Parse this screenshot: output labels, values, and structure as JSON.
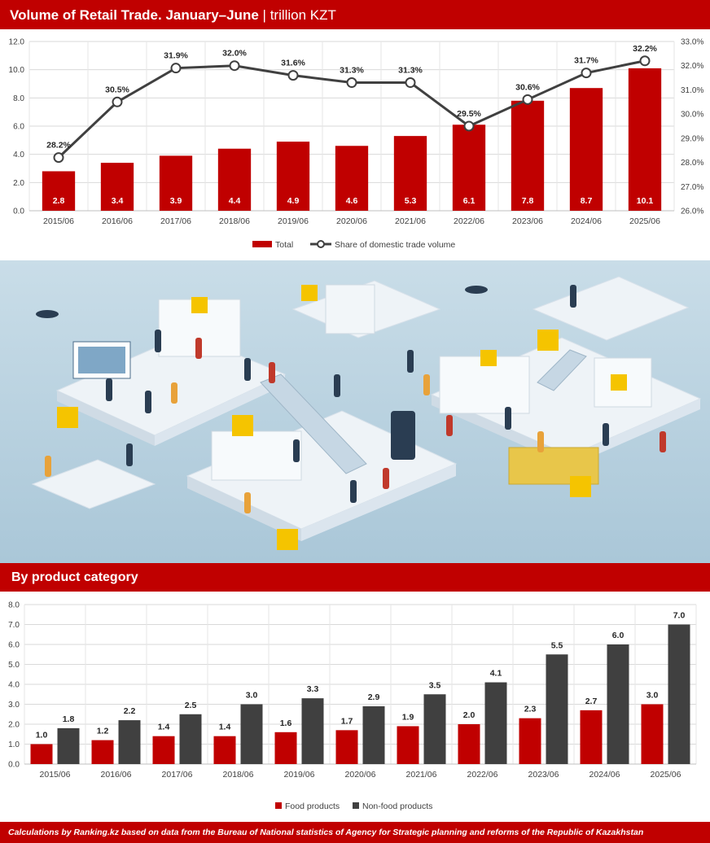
{
  "header": {
    "title": "Volume of Retail Trade. January–June",
    "separator": "|",
    "unit": "trillion KZT"
  },
  "section2": {
    "title": "By product category"
  },
  "footer": {
    "source": "Calculations by Ranking.kz based on data from the Bureau of National statistics of Agency for Strategic planning and reforms of the Republic of Kazakhstan"
  },
  "colors": {
    "accent": "#c00000",
    "dark": "#404040",
    "line": "#404040"
  },
  "chart_data": [
    {
      "type": "bar+line",
      "categories": [
        "2015/06",
        "2016/06",
        "2017/06",
        "2018/06",
        "2019/06",
        "2020/06",
        "2021/06",
        "2022/06",
        "2023/06",
        "2024/06",
        "2025/06"
      ],
      "series": [
        {
          "name": "Total",
          "type": "bar",
          "axis": "left",
          "values": [
            2.8,
            3.4,
            3.9,
            4.4,
            4.9,
            4.6,
            5.3,
            6.1,
            7.8,
            8.7,
            10.1
          ],
          "labels": [
            "2.8",
            "3.4",
            "3.9",
            "4.4",
            "4.9",
            "4.6",
            "5.3",
            "6.1",
            "7.8",
            "8.7",
            "10.1"
          ]
        },
        {
          "name": "Share of domestic trade volume",
          "type": "line",
          "axis": "right",
          "values": [
            28.2,
            30.5,
            31.9,
            32.0,
            31.6,
            31.3,
            31.3,
            29.5,
            30.6,
            31.7,
            32.2
          ],
          "labels": [
            "28.2%",
            "30.5%",
            "31.9%",
            "32.0%",
            "31.6%",
            "31.3%",
            "31.3%",
            "29.5%",
            "30.6%",
            "31.7%",
            "32.2%"
          ]
        }
      ],
      "ylim_left": [
        0,
        12
      ],
      "yticks_left": [
        "0.0",
        "2.0",
        "4.0",
        "6.0",
        "8.0",
        "10.0",
        "12.0"
      ],
      "ylim_right": [
        26,
        33
      ],
      "yticks_right": [
        "26.0%",
        "27.0%",
        "28.0%",
        "29.0%",
        "30.0%",
        "31.0%",
        "32.0%",
        "33.0%"
      ],
      "grid": true,
      "legend": "bottom"
    },
    {
      "type": "bar",
      "categories": [
        "2015/06",
        "2016/06",
        "2017/06",
        "2018/06",
        "2019/06",
        "2020/06",
        "2021/06",
        "2022/06",
        "2023/06",
        "2024/06",
        "2025/06"
      ],
      "series": [
        {
          "name": "Food products",
          "values": [
            1.0,
            1.2,
            1.4,
            1.4,
            1.6,
            1.7,
            1.9,
            2.0,
            2.3,
            2.7,
            3.0
          ],
          "labels": [
            "1.0",
            "1.2",
            "1.4",
            "1.4",
            "1.6",
            "1.7",
            "1.9",
            "2.0",
            "2.3",
            "2.7",
            "3.0"
          ]
        },
        {
          "name": "Non-food products",
          "values": [
            1.8,
            2.2,
            2.5,
            3.0,
            3.3,
            2.9,
            3.5,
            4.1,
            5.5,
            6.0,
            7.0
          ],
          "labels": [
            "1.8",
            "2.2",
            "2.5",
            "3.0",
            "3.3",
            "2.9",
            "3.5",
            "4.1",
            "5.5",
            "6.0",
            "7.0"
          ]
        }
      ],
      "ylim": [
        0,
        8
      ],
      "yticks": [
        "0.0",
        "1.0",
        "2.0",
        "3.0",
        "4.0",
        "5.0",
        "6.0",
        "7.0",
        "8.0"
      ],
      "grid": true,
      "legend": "bottom"
    }
  ]
}
